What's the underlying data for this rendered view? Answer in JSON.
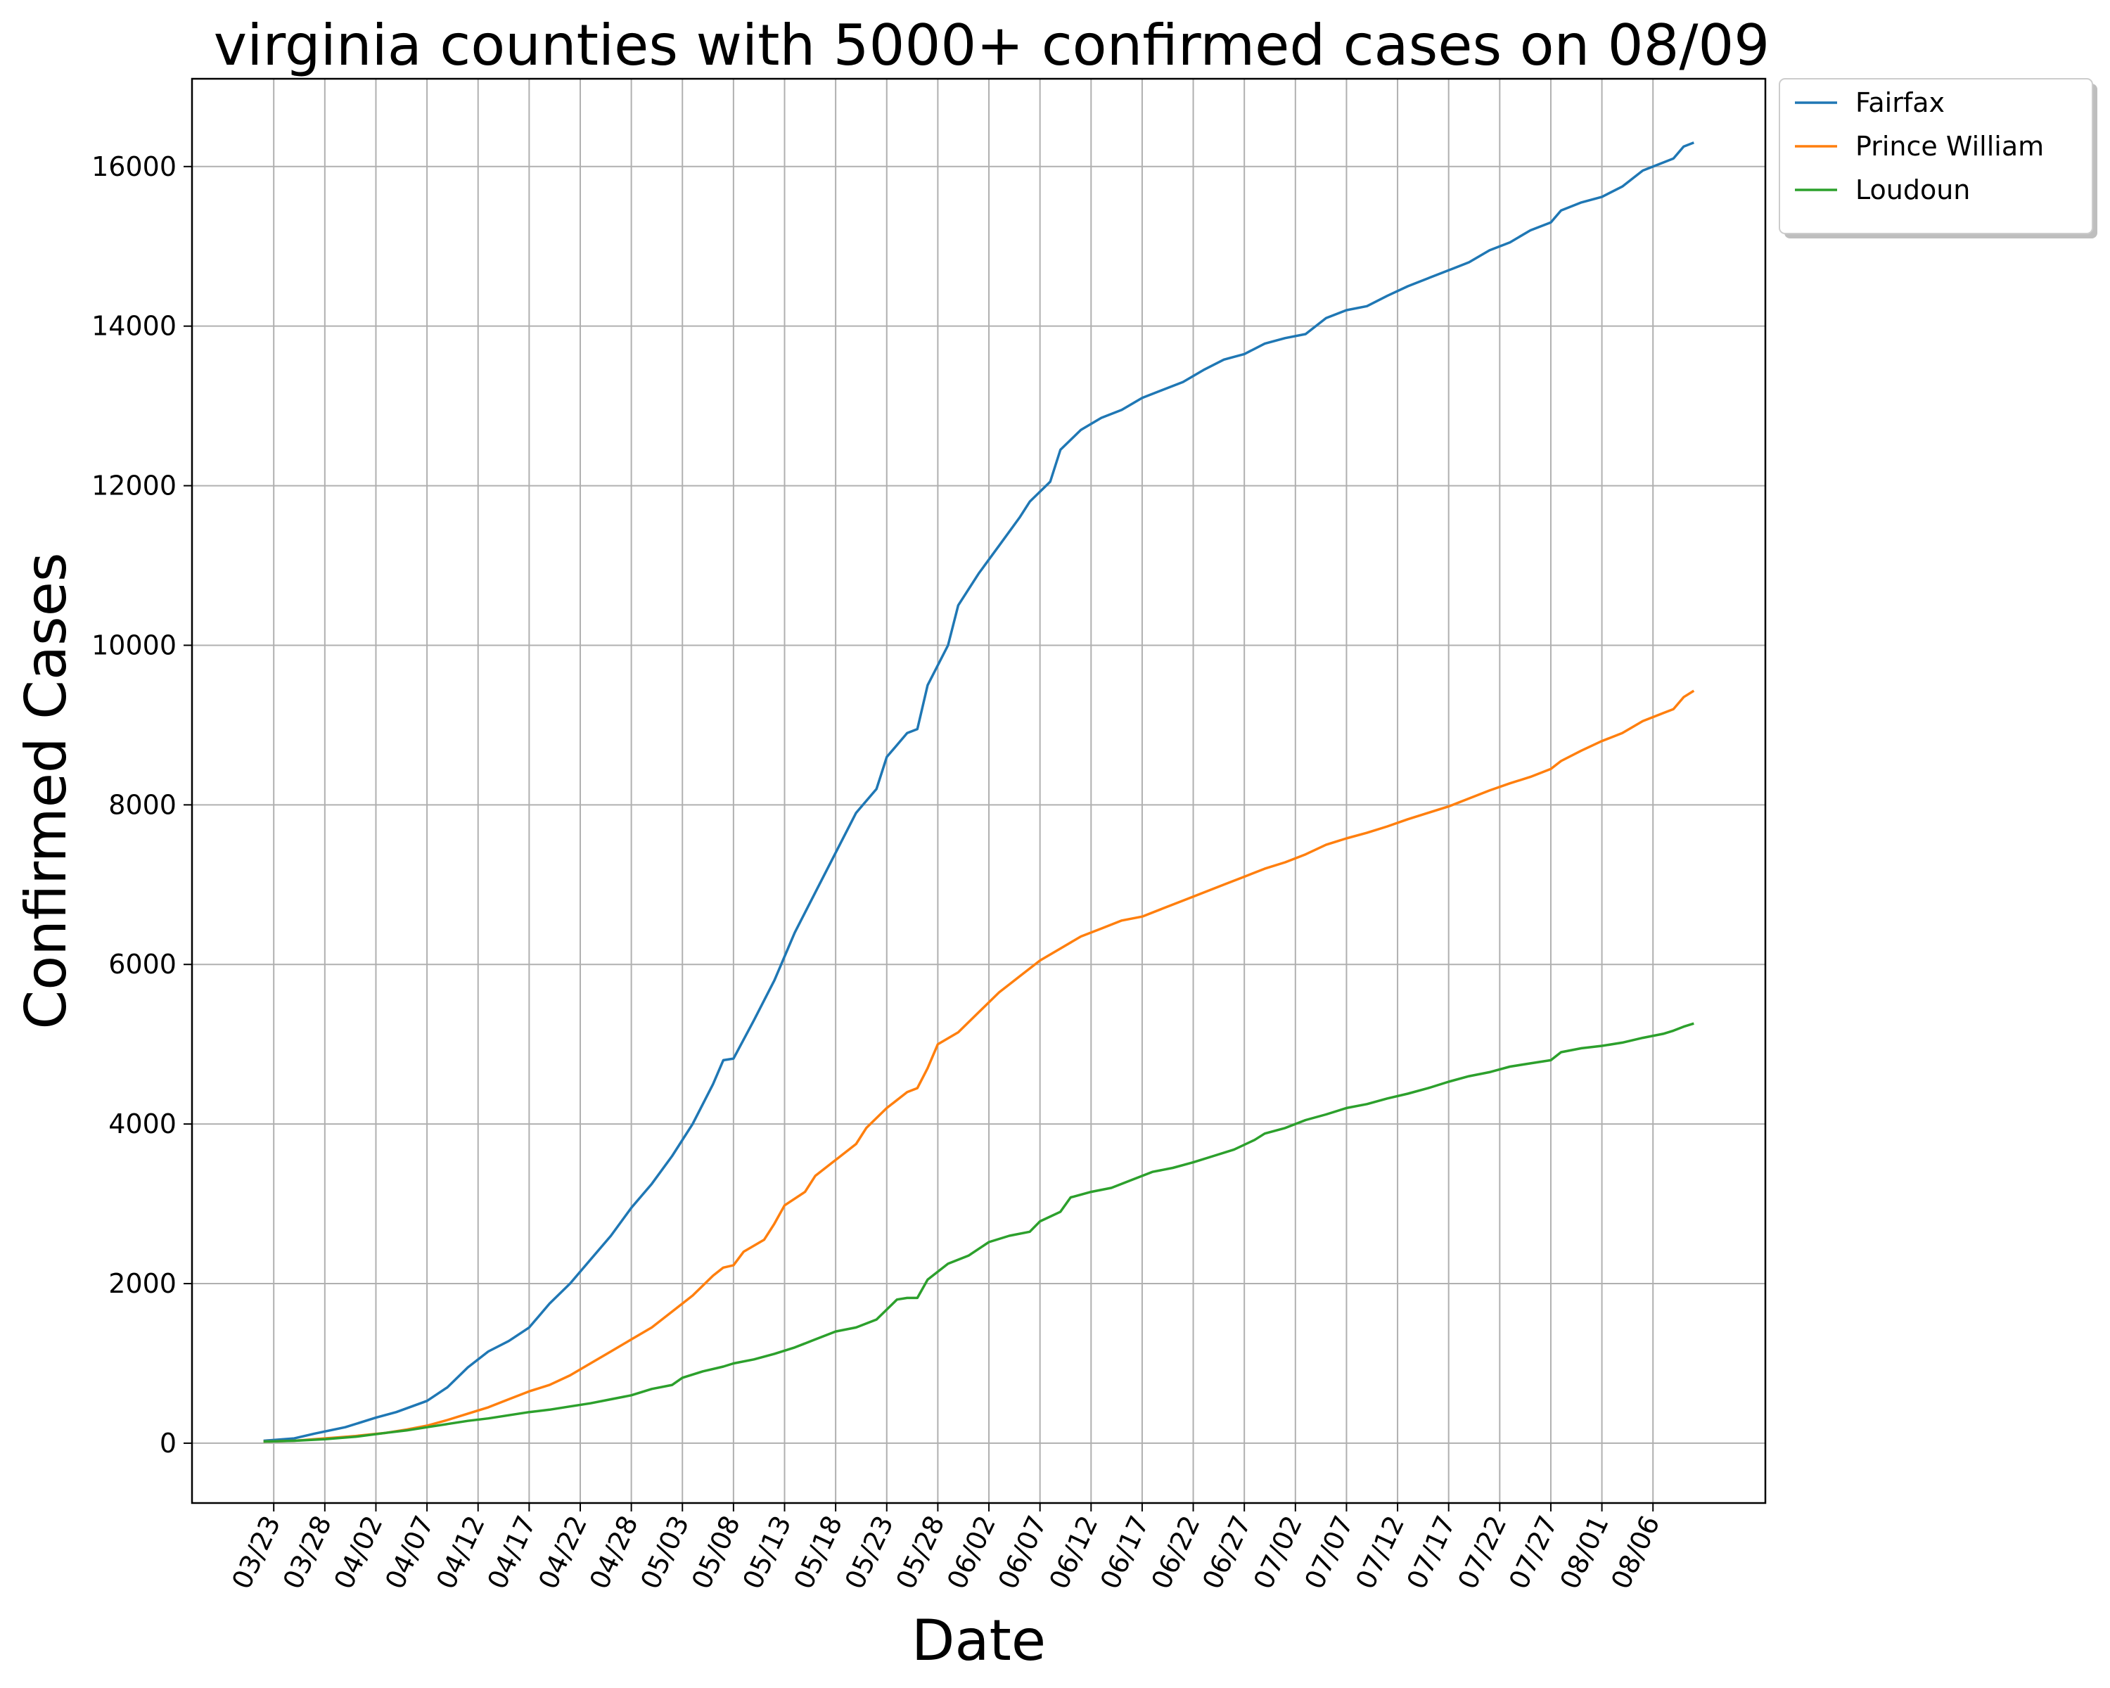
{
  "chart_data": {
    "type": "line",
    "title": "virginia counties with 5000+ confirmed cases on 08/09",
    "xlabel": "Date",
    "ylabel": "Confirmed Cases",
    "ylim": [
      -750,
      17100
    ],
    "yticks": [
      0,
      2000,
      4000,
      6000,
      8000,
      10000,
      12000,
      14000,
      16000
    ],
    "xlim": [
      "2020-03-15",
      "2020-08-16"
    ],
    "xticks": [
      "03/23",
      "03/28",
      "04/02",
      "04/07",
      "04/12",
      "04/17",
      "04/22",
      "04/28",
      "05/03",
      "05/08",
      "05/13",
      "05/18",
      "05/23",
      "05/28",
      "06/02",
      "06/07",
      "06/12",
      "06/17",
      "06/22",
      "06/27",
      "07/02",
      "07/07",
      "07/12",
      "07/17",
      "07/22",
      "07/27",
      "08/01",
      "08/06"
    ],
    "xtick_dates": [
      "2020-03-23",
      "2020-03-28",
      "2020-04-02",
      "2020-04-07",
      "2020-04-12",
      "2020-04-17",
      "2020-04-22",
      "2020-04-27",
      "2020-05-02",
      "2020-05-07",
      "2020-05-12",
      "2020-05-17",
      "2020-05-22",
      "2020-05-27",
      "2020-06-01",
      "2020-06-06",
      "2020-06-11",
      "2020-06-16",
      "2020-06-21",
      "2020-06-26",
      "2020-07-01",
      "2020-07-06",
      "2020-07-11",
      "2020-07-16",
      "2020-07-21",
      "2020-07-26",
      "2020-07-31",
      "2020-08-05"
    ],
    "grid": true,
    "legend_position": "outside-upper-right",
    "series": [
      {
        "name": "Fairfax",
        "color": "#1f77b4",
        "points": [
          [
            "2020-03-22",
            30
          ],
          [
            "2020-03-25",
            60
          ],
          [
            "2020-03-27",
            120
          ],
          [
            "2020-03-30",
            200
          ],
          [
            "2020-04-02",
            320
          ],
          [
            "2020-04-04",
            390
          ],
          [
            "2020-04-07",
            530
          ],
          [
            "2020-04-09",
            700
          ],
          [
            "2020-04-11",
            950
          ],
          [
            "2020-04-13",
            1150
          ],
          [
            "2020-04-15",
            1280
          ],
          [
            "2020-04-17",
            1450
          ],
          [
            "2020-04-19",
            1750
          ],
          [
            "2020-04-21",
            2000
          ],
          [
            "2020-04-23",
            2300
          ],
          [
            "2020-04-25",
            2600
          ],
          [
            "2020-04-27",
            2950
          ],
          [
            "2020-04-29",
            3250
          ],
          [
            "2020-05-01",
            3600
          ],
          [
            "2020-05-03",
            4000
          ],
          [
            "2020-05-05",
            4500
          ],
          [
            "2020-05-06",
            4800
          ],
          [
            "2020-05-07",
            4820
          ],
          [
            "2020-05-09",
            5300
          ],
          [
            "2020-05-11",
            5800
          ],
          [
            "2020-05-13",
            6400
          ],
          [
            "2020-05-15",
            6900
          ],
          [
            "2020-05-17",
            7400
          ],
          [
            "2020-05-19",
            7900
          ],
          [
            "2020-05-21",
            8200
          ],
          [
            "2020-05-22",
            8600
          ],
          [
            "2020-05-24",
            8900
          ],
          [
            "2020-05-25",
            8950
          ],
          [
            "2020-05-26",
            9500
          ],
          [
            "2020-05-28",
            10000
          ],
          [
            "2020-05-29",
            10500
          ],
          [
            "2020-05-31",
            10900
          ],
          [
            "2020-06-02",
            11250
          ],
          [
            "2020-06-04",
            11600
          ],
          [
            "2020-06-05",
            11800
          ],
          [
            "2020-06-07",
            12050
          ],
          [
            "2020-06-08",
            12450
          ],
          [
            "2020-06-10",
            12700
          ],
          [
            "2020-06-12",
            12850
          ],
          [
            "2020-06-14",
            12950
          ],
          [
            "2020-06-16",
            13100
          ],
          [
            "2020-06-18",
            13200
          ],
          [
            "2020-06-20",
            13300
          ],
          [
            "2020-06-22",
            13450
          ],
          [
            "2020-06-24",
            13580
          ],
          [
            "2020-06-26",
            13650
          ],
          [
            "2020-06-28",
            13780
          ],
          [
            "2020-06-30",
            13850
          ],
          [
            "2020-07-02",
            13900
          ],
          [
            "2020-07-04",
            14100
          ],
          [
            "2020-07-06",
            14200
          ],
          [
            "2020-07-08",
            14250
          ],
          [
            "2020-07-10",
            14380
          ],
          [
            "2020-07-12",
            14500
          ],
          [
            "2020-07-14",
            14600
          ],
          [
            "2020-07-16",
            14700
          ],
          [
            "2020-07-18",
            14800
          ],
          [
            "2020-07-20",
            14950
          ],
          [
            "2020-07-22",
            15050
          ],
          [
            "2020-07-24",
            15200
          ],
          [
            "2020-07-26",
            15300
          ],
          [
            "2020-07-27",
            15450
          ],
          [
            "2020-07-29",
            15550
          ],
          [
            "2020-07-31",
            15620
          ],
          [
            "2020-08-02",
            15750
          ],
          [
            "2020-08-04",
            15950
          ],
          [
            "2020-08-06",
            16050
          ],
          [
            "2020-08-07",
            16100
          ],
          [
            "2020-08-08",
            16250
          ],
          [
            "2020-08-09",
            16300
          ]
        ]
      },
      {
        "name": "Prince William",
        "color": "#ff7f0e",
        "points": [
          [
            "2020-03-22",
            20
          ],
          [
            "2020-03-25",
            30
          ],
          [
            "2020-03-28",
            60
          ],
          [
            "2020-03-31",
            90
          ],
          [
            "2020-04-03",
            130
          ],
          [
            "2020-04-05",
            170
          ],
          [
            "2020-04-07",
            220
          ],
          [
            "2020-04-09",
            290
          ],
          [
            "2020-04-11",
            370
          ],
          [
            "2020-04-13",
            450
          ],
          [
            "2020-04-15",
            550
          ],
          [
            "2020-04-17",
            650
          ],
          [
            "2020-04-19",
            730
          ],
          [
            "2020-04-21",
            850
          ],
          [
            "2020-04-23",
            1000
          ],
          [
            "2020-04-25",
            1150
          ],
          [
            "2020-04-27",
            1300
          ],
          [
            "2020-04-29",
            1450
          ],
          [
            "2020-05-01",
            1650
          ],
          [
            "2020-05-03",
            1850
          ],
          [
            "2020-05-05",
            2100
          ],
          [
            "2020-05-06",
            2200
          ],
          [
            "2020-05-07",
            2230
          ],
          [
            "2020-05-08",
            2400
          ],
          [
            "2020-05-10",
            2550
          ],
          [
            "2020-05-11",
            2750
          ],
          [
            "2020-05-12",
            2980
          ],
          [
            "2020-05-14",
            3150
          ],
          [
            "2020-05-15",
            3350
          ],
          [
            "2020-05-17",
            3550
          ],
          [
            "2020-05-19",
            3750
          ],
          [
            "2020-05-20",
            3950
          ],
          [
            "2020-05-22",
            4200
          ],
          [
            "2020-05-24",
            4400
          ],
          [
            "2020-05-25",
            4450
          ],
          [
            "2020-05-26",
            4700
          ],
          [
            "2020-05-27",
            5000
          ],
          [
            "2020-05-29",
            5150
          ],
          [
            "2020-05-31",
            5400
          ],
          [
            "2020-06-02",
            5650
          ],
          [
            "2020-06-04",
            5850
          ],
          [
            "2020-06-06",
            6050
          ],
          [
            "2020-06-08",
            6200
          ],
          [
            "2020-06-10",
            6350
          ],
          [
            "2020-06-12",
            6450
          ],
          [
            "2020-06-14",
            6550
          ],
          [
            "2020-06-16",
            6600
          ],
          [
            "2020-06-18",
            6700
          ],
          [
            "2020-06-20",
            6800
          ],
          [
            "2020-06-22",
            6900
          ],
          [
            "2020-06-24",
            7000
          ],
          [
            "2020-06-26",
            7100
          ],
          [
            "2020-06-28",
            7200
          ],
          [
            "2020-06-30",
            7280
          ],
          [
            "2020-07-02",
            7380
          ],
          [
            "2020-07-04",
            7500
          ],
          [
            "2020-07-06",
            7580
          ],
          [
            "2020-07-08",
            7650
          ],
          [
            "2020-07-10",
            7730
          ],
          [
            "2020-07-12",
            7820
          ],
          [
            "2020-07-14",
            7900
          ],
          [
            "2020-07-16",
            7980
          ],
          [
            "2020-07-18",
            8080
          ],
          [
            "2020-07-20",
            8180
          ],
          [
            "2020-07-22",
            8270
          ],
          [
            "2020-07-24",
            8350
          ],
          [
            "2020-07-26",
            8450
          ],
          [
            "2020-07-27",
            8550
          ],
          [
            "2020-07-29",
            8680
          ],
          [
            "2020-07-31",
            8800
          ],
          [
            "2020-08-02",
            8900
          ],
          [
            "2020-08-04",
            9050
          ],
          [
            "2020-08-06",
            9150
          ],
          [
            "2020-08-07",
            9200
          ],
          [
            "2020-08-08",
            9350
          ],
          [
            "2020-08-09",
            9430
          ]
        ]
      },
      {
        "name": "Loudoun",
        "color": "#2ca02c",
        "points": [
          [
            "2020-03-22",
            20
          ],
          [
            "2020-03-25",
            30
          ],
          [
            "2020-03-28",
            50
          ],
          [
            "2020-03-31",
            80
          ],
          [
            "2020-04-03",
            130
          ],
          [
            "2020-04-05",
            160
          ],
          [
            "2020-04-07",
            200
          ],
          [
            "2020-04-09",
            240
          ],
          [
            "2020-04-11",
            280
          ],
          [
            "2020-04-13",
            310
          ],
          [
            "2020-04-15",
            350
          ],
          [
            "2020-04-17",
            390
          ],
          [
            "2020-04-19",
            420
          ],
          [
            "2020-04-21",
            460
          ],
          [
            "2020-04-23",
            500
          ],
          [
            "2020-04-25",
            550
          ],
          [
            "2020-04-27",
            600
          ],
          [
            "2020-04-29",
            680
          ],
          [
            "2020-05-01",
            730
          ],
          [
            "2020-05-02",
            820
          ],
          [
            "2020-05-04",
            900
          ],
          [
            "2020-05-06",
            960
          ],
          [
            "2020-05-07",
            1000
          ],
          [
            "2020-05-09",
            1050
          ],
          [
            "2020-05-11",
            1120
          ],
          [
            "2020-05-13",
            1200
          ],
          [
            "2020-05-15",
            1300
          ],
          [
            "2020-05-17",
            1400
          ],
          [
            "2020-05-19",
            1450
          ],
          [
            "2020-05-21",
            1550
          ],
          [
            "2020-05-23",
            1800
          ],
          [
            "2020-05-24",
            1820
          ],
          [
            "2020-05-25",
            1820
          ],
          [
            "2020-05-26",
            2050
          ],
          [
            "2020-05-28",
            2250
          ],
          [
            "2020-05-30",
            2350
          ],
          [
            "2020-06-01",
            2520
          ],
          [
            "2020-06-03",
            2600
          ],
          [
            "2020-06-05",
            2650
          ],
          [
            "2020-06-06",
            2780
          ],
          [
            "2020-06-08",
            2900
          ],
          [
            "2020-06-09",
            3080
          ],
          [
            "2020-06-11",
            3150
          ],
          [
            "2020-06-13",
            3200
          ],
          [
            "2020-06-15",
            3300
          ],
          [
            "2020-06-17",
            3400
          ],
          [
            "2020-06-19",
            3450
          ],
          [
            "2020-06-21",
            3520
          ],
          [
            "2020-06-23",
            3600
          ],
          [
            "2020-06-25",
            3680
          ],
          [
            "2020-06-27",
            3800
          ],
          [
            "2020-06-28",
            3880
          ],
          [
            "2020-06-30",
            3950
          ],
          [
            "2020-07-02",
            4050
          ],
          [
            "2020-07-04",
            4120
          ],
          [
            "2020-07-06",
            4200
          ],
          [
            "2020-07-08",
            4250
          ],
          [
            "2020-07-10",
            4320
          ],
          [
            "2020-07-12",
            4380
          ],
          [
            "2020-07-14",
            4450
          ],
          [
            "2020-07-16",
            4530
          ],
          [
            "2020-07-18",
            4600
          ],
          [
            "2020-07-20",
            4650
          ],
          [
            "2020-07-22",
            4720
          ],
          [
            "2020-07-24",
            4760
          ],
          [
            "2020-07-26",
            4800
          ],
          [
            "2020-07-27",
            4900
          ],
          [
            "2020-07-29",
            4950
          ],
          [
            "2020-07-31",
            4980
          ],
          [
            "2020-08-02",
            5020
          ],
          [
            "2020-08-04",
            5080
          ],
          [
            "2020-08-06",
            5130
          ],
          [
            "2020-08-07",
            5170
          ],
          [
            "2020-08-08",
            5220
          ],
          [
            "2020-08-09",
            5260
          ]
        ]
      }
    ]
  }
}
